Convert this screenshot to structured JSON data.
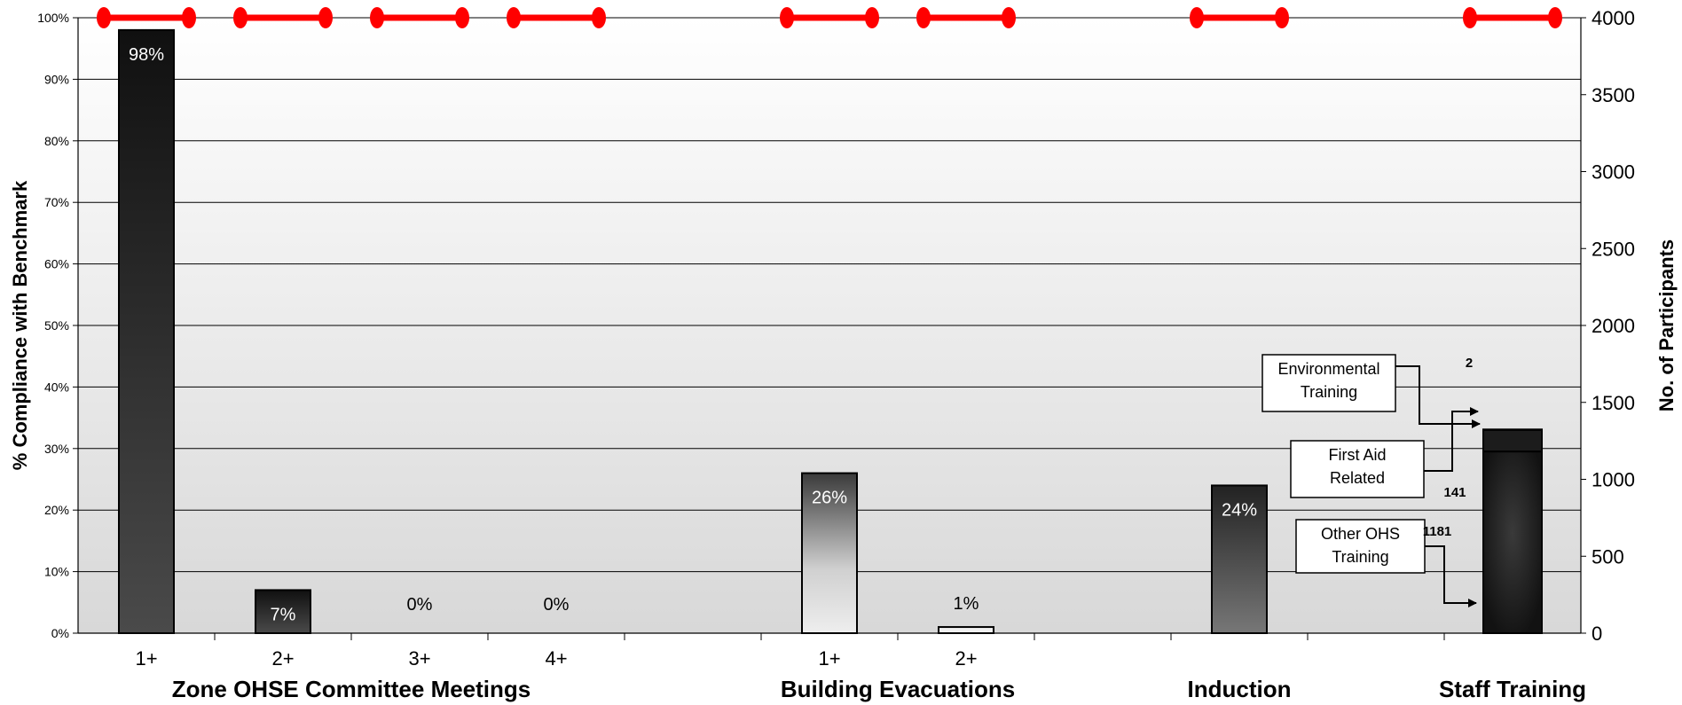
{
  "chart_data": {
    "type": "bar",
    "left_axis": {
      "title": "% Compliance with Benchmark",
      "ylim": [
        0,
        100
      ],
      "ticks": [
        "0%",
        "10%",
        "20%",
        "30%",
        "40%",
        "50%",
        "60%",
        "70%",
        "80%",
        "90%",
        "100%"
      ]
    },
    "right_axis": {
      "title": "No. of Participants",
      "ylim": [
        0,
        4000
      ],
      "ticks": [
        "0",
        "500",
        "1000",
        "1500",
        "2000",
        "2500",
        "3000",
        "3500",
        "4000"
      ]
    },
    "grid": true,
    "bars": [
      {
        "slot": 0,
        "category": "1+",
        "value": 98,
        "label": "98%",
        "style": "dark"
      },
      {
        "slot": 1,
        "category": "2+",
        "value": 7,
        "label": "7%",
        "style": "dark"
      },
      {
        "slot": 2,
        "category": "3+",
        "value": 0,
        "label": "0%",
        "style": "none"
      },
      {
        "slot": 3,
        "category": "4+",
        "value": 0,
        "label": "0%",
        "style": "none"
      },
      {
        "slot": 5,
        "category": "1+",
        "value": 26,
        "label": "26%",
        "style": "light-grad"
      },
      {
        "slot": 6,
        "category": "2+",
        "value": 1,
        "label": "1%",
        "style": "light"
      },
      {
        "slot": 8,
        "category": "",
        "value": 24,
        "label": "24%",
        "style": "mid-grad"
      }
    ],
    "benchmark_line": {
      "color": "#ff0000",
      "segments": [
        {
          "slot": 0,
          "value": 100
        },
        {
          "slot": 1,
          "value": 100
        },
        {
          "slot": 2,
          "value": 100
        },
        {
          "slot": 3,
          "value": 100
        },
        {
          "slot": 5,
          "value": 100
        },
        {
          "slot": 6,
          "value": 100
        },
        {
          "slot": 8,
          "value": 100
        },
        {
          "slot": 10,
          "value": 100
        }
      ]
    },
    "staff_training": {
      "slot": 10,
      "stack": [
        {
          "name": "Other OHS Training",
          "value": 1181
        },
        {
          "name": "First Aid Related",
          "value": 141
        },
        {
          "name": "Environmental Training",
          "value": 2
        }
      ]
    },
    "groups": [
      {
        "label": "Zone OHSE Committee Meetings",
        "slots": [
          0,
          3
        ]
      },
      {
        "label": "Building Evacuations",
        "slots": [
          5,
          6
        ]
      },
      {
        "label": "Induction",
        "slots": [
          8,
          8
        ]
      },
      {
        "label": "Staff Training",
        "slots": [
          10,
          10
        ]
      }
    ],
    "callouts": [
      {
        "text": [
          "Environmental",
          "Training"
        ],
        "value": "2"
      },
      {
        "text": [
          "First Aid",
          "Related"
        ],
        "value": "141"
      },
      {
        "text": [
          "Other OHS",
          "Training"
        ],
        "value": "1181"
      }
    ]
  }
}
